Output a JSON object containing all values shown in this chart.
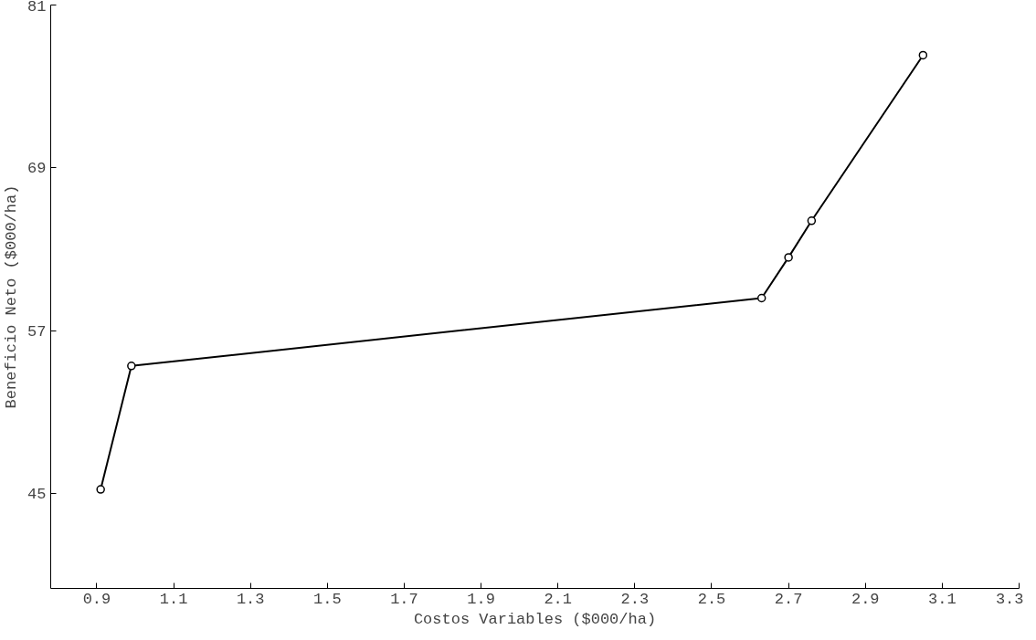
{
  "chart_data": {
    "type": "line",
    "xlabel": "Costos Variables ($000/ha)",
    "ylabel": "Beneficio Neto ($000/ha)",
    "x": [
      0.91,
      0.99,
      2.63,
      2.7,
      2.76,
      3.05
    ],
    "values": [
      45.3,
      54.4,
      59.4,
      62.4,
      65.1,
      77.3
    ],
    "color": "#000000",
    "marker": "circle",
    "line_style": "solid",
    "grid": false,
    "xlim": [
      0.78,
      3.3
    ],
    "xticks": [
      0.9,
      1.1,
      1.3,
      1.5,
      1.7,
      1.9,
      2.1,
      2.3,
      2.5,
      2.7,
      2.9,
      3.1,
      3.3
    ],
    "ylim": [
      38,
      81
    ],
    "yticks": [
      45,
      57,
      69,
      81
    ]
  }
}
